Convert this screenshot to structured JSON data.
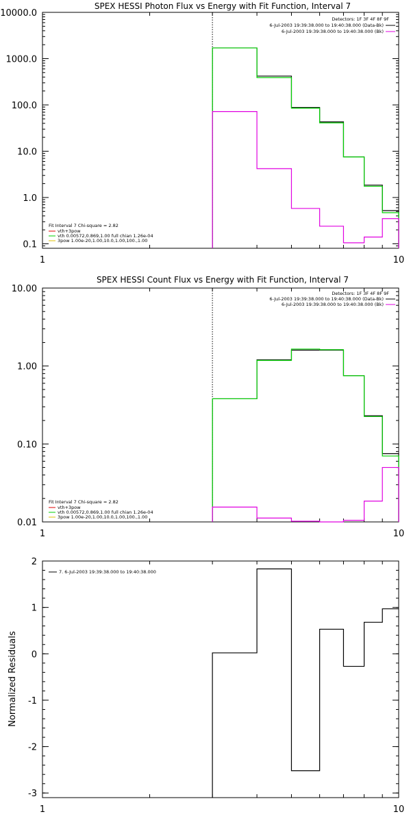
{
  "chart_data": [
    {
      "type": "line",
      "title": "SPEX HESSI Photon Flux vs Energy with Fit Function, Interval 7",
      "xlabel": "",
      "ylabel": "",
      "x_scale": "log",
      "y_scale": "log",
      "xlim": [
        1,
        10
      ],
      "ylim": [
        0.08,
        10000
      ],
      "x_tick_labels": [
        "1",
        "10"
      ],
      "y_ticks": [
        0.1,
        1,
        10,
        100,
        1000,
        10000
      ],
      "y_tick_labels": [
        "0.1",
        "1.0",
        "10.0",
        "100.0",
        "1000.0",
        "10000.0"
      ],
      "vline_x": 3.0,
      "legend_top_right": [
        "Detectors: 1F 3F 4F 8F 9F",
        "6-Jul-2003 19:39:38.000 to 19:40:38.000 (Data-Bk)",
        "6-Jul-2003 19:39:38.000 to 19:40:38.000 (Bk)"
      ],
      "legend_bottom_left": [
        "Fit Interval 7   Chi-square = 2.82",
        "vth+3pow",
        "vth 0.00572,0.869,1.00   full chian 1.26e-04",
        "3pow 1.00e-20,1.00,10.0,1.00,100.,1.00"
      ],
      "series": [
        {
          "name": "6-Jul-2003 19:39:38.000 to 19:40:38.000 (Data-Bk)",
          "color": "#000000",
          "edges": [
            3.0,
            4.0,
            5.0,
            6.0,
            7.0,
            8.0,
            9.0,
            10.0
          ],
          "values": [
            1700,
            420,
            88,
            43,
            7.5,
            1.85,
            0.52
          ]
        },
        {
          "name": "vth+3pow",
          "color": "#00d000",
          "edges": [
            3.0,
            4.0,
            5.0,
            6.0,
            7.0,
            8.0,
            9.0,
            10.0
          ],
          "values": [
            1700,
            390,
            85,
            41,
            7.5,
            1.75,
            0.47
          ]
        },
        {
          "name": "6-Jul-2003 19:39:38.000 to 19:40:38.000 (Bk)",
          "color": "#e000e0",
          "edges": [
            3.0,
            4.0,
            5.0,
            6.0,
            7.0,
            8.0,
            9.0,
            10.0
          ],
          "values": [
            72,
            4.2,
            0.58,
            0.24,
            0.105,
            0.14,
            0.35
          ]
        }
      ]
    },
    {
      "type": "line",
      "title": "SPEX HESSI Count Flux vs Energy with Fit Function, Interval 7",
      "xlabel": "",
      "ylabel": "",
      "x_scale": "log",
      "y_scale": "log",
      "xlim": [
        1,
        10
      ],
      "ylim": [
        0.01,
        10
      ],
      "x_tick_labels": [
        "1",
        "10"
      ],
      "y_ticks": [
        0.01,
        0.1,
        1,
        10
      ],
      "y_tick_labels": [
        "0.01",
        "0.10",
        "1.00",
        "10.00"
      ],
      "vline_x": 3.0,
      "legend_top_right": [
        "Detectors: 1F 3F 4F 8F 9F",
        "6-Jul-2003 19:39:38.000 to 19:40:38.000 (Data-Bk)",
        "6-Jul-2003 19:39:38.000 to 19:40:38.000 (Bk)"
      ],
      "legend_bottom_left": [
        "Fit Interval 7   Chi-square = 2.82",
        "vth+3pow",
        "vth 0.00572,0.869,1.00   full chian 1.26e-04",
        "3pow 1.00e-20,1.00,10.0,1.00,100.,1.00"
      ],
      "series": [
        {
          "name": "6-Jul-2003 19:39:38.000 to 19:40:38.000 (Data-Bk)",
          "color": "#000000",
          "edges": [
            3.0,
            4.0,
            5.0,
            6.0,
            7.0,
            8.0,
            9.0,
            10.0
          ],
          "values": [
            0.38,
            1.2,
            1.6,
            1.6,
            0.75,
            0.23,
            0.075
          ]
        },
        {
          "name": "vth+3pow",
          "color": "#00d000",
          "edges": [
            3.0,
            4.0,
            5.0,
            6.0,
            7.0,
            8.0,
            9.0,
            10.0
          ],
          "values": [
            0.38,
            1.18,
            1.65,
            1.62,
            0.75,
            0.225,
            0.07
          ]
        },
        {
          "name": "6-Jul-2003 19:39:38.000 to 19:40:38.000 (Bk)",
          "color": "#e000e0",
          "edges": [
            3.0,
            4.0,
            5.0,
            6.0,
            7.0,
            8.0,
            9.0,
            10.0
          ],
          "values": [
            0.0155,
            0.0112,
            0.0102,
            0.0097,
            0.0105,
            0.0185,
            0.05
          ]
        }
      ]
    },
    {
      "type": "line",
      "title": "",
      "xlabel": "",
      "ylabel": "Normalized Residuals",
      "x_scale": "log",
      "y_scale": "linear",
      "xlim": [
        1,
        10
      ],
      "ylim": [
        -3.1,
        2.0
      ],
      "x_tick_labels": [
        "1",
        "10"
      ],
      "y_ticks": [
        -3,
        -2,
        -1,
        0,
        1,
        2
      ],
      "y_tick_labels": [
        "-3",
        "-2",
        "-1",
        "0",
        "1",
        "2"
      ],
      "legend_top_left": [
        "7.  6-Jul-2003 19:39:38.000 to 19:40:38.000"
      ],
      "series": [
        {
          "name": "7.  6-Jul-2003 19:39:38.000 to 19:40:38.000",
          "color": "#000000",
          "edges": [
            3.0,
            4.0,
            5.0,
            6.0,
            7.0,
            8.0,
            9.0,
            10.0
          ],
          "values": [
            0.02,
            1.83,
            -2.52,
            0.53,
            -0.27,
            0.68,
            0.97
          ]
        }
      ]
    }
  ]
}
